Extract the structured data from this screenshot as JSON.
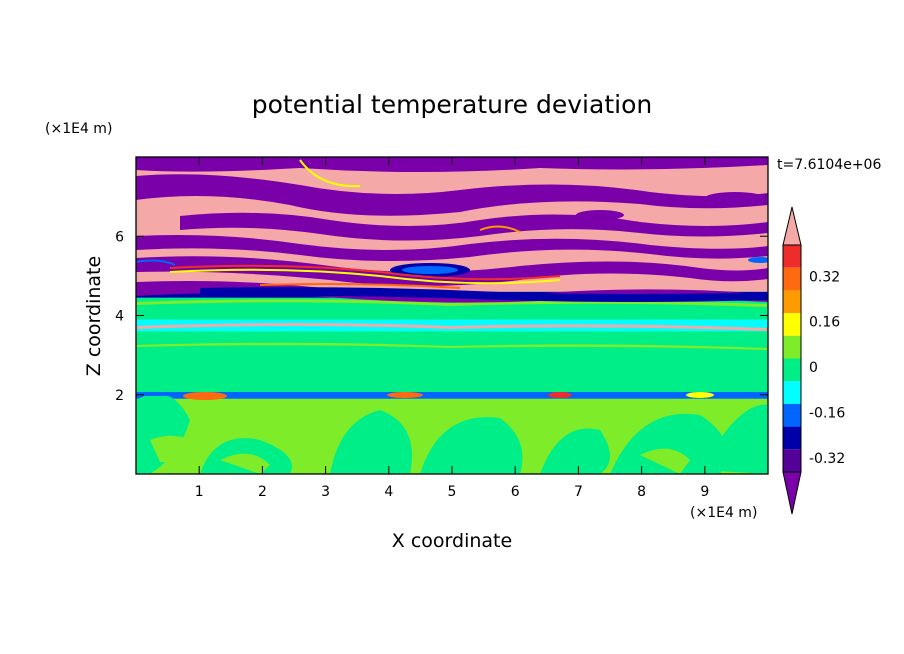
{
  "chart_data": {
    "type": "heatmap",
    "title": "potential temperature deviation",
    "xlabel": "X coordinate",
    "ylabel": "Z coordinate",
    "x_unit": "(×1E4 m)",
    "y_unit": "(×1E4 m)",
    "time_label": "t=7.6104e+06",
    "xlim": [
      0,
      10
    ],
    "ylim": [
      0,
      8
    ],
    "x_ticks": [
      "1",
      "2",
      "3",
      "4",
      "5",
      "6",
      "7",
      "8",
      "9"
    ],
    "y_ticks": [
      "2",
      "4",
      "6"
    ],
    "colorbar": {
      "labels": [
        "0.32",
        "0.16",
        "0",
        "-0.16",
        "-0.32"
      ],
      "colors_top_to_bottom": [
        "#f4a8a8",
        "#ef2c2c",
        "#ff6a10",
        "#ff9a00",
        "#ffff00",
        "#7fec2a",
        "#00ee88",
        "#00ffff",
        "#0066ff",
        "#0000aa",
        "#550099",
        "#7a00aa"
      ]
    },
    "bands": [
      {
        "from": 0.0,
        "to": 1.9,
        "color": "#7fec2a",
        "note": "lower mixed green"
      },
      {
        "from": 1.9,
        "to": 2.0,
        "color": "#0066ff",
        "note": "thin inversion"
      },
      {
        "from": 2.0,
        "to": 3.6,
        "color": "#00ee88"
      },
      {
        "from": 3.6,
        "to": 3.9,
        "color": "#00ffff"
      },
      {
        "from": 3.9,
        "to": 4.45,
        "color": "#00ee88"
      },
      {
        "from": 4.45,
        "to": 4.6,
        "color": "#0000aa"
      },
      {
        "from": 4.6,
        "to": 8.0,
        "color": "#f4a8a8",
        "note": "upper stratified layers"
      }
    ]
  }
}
